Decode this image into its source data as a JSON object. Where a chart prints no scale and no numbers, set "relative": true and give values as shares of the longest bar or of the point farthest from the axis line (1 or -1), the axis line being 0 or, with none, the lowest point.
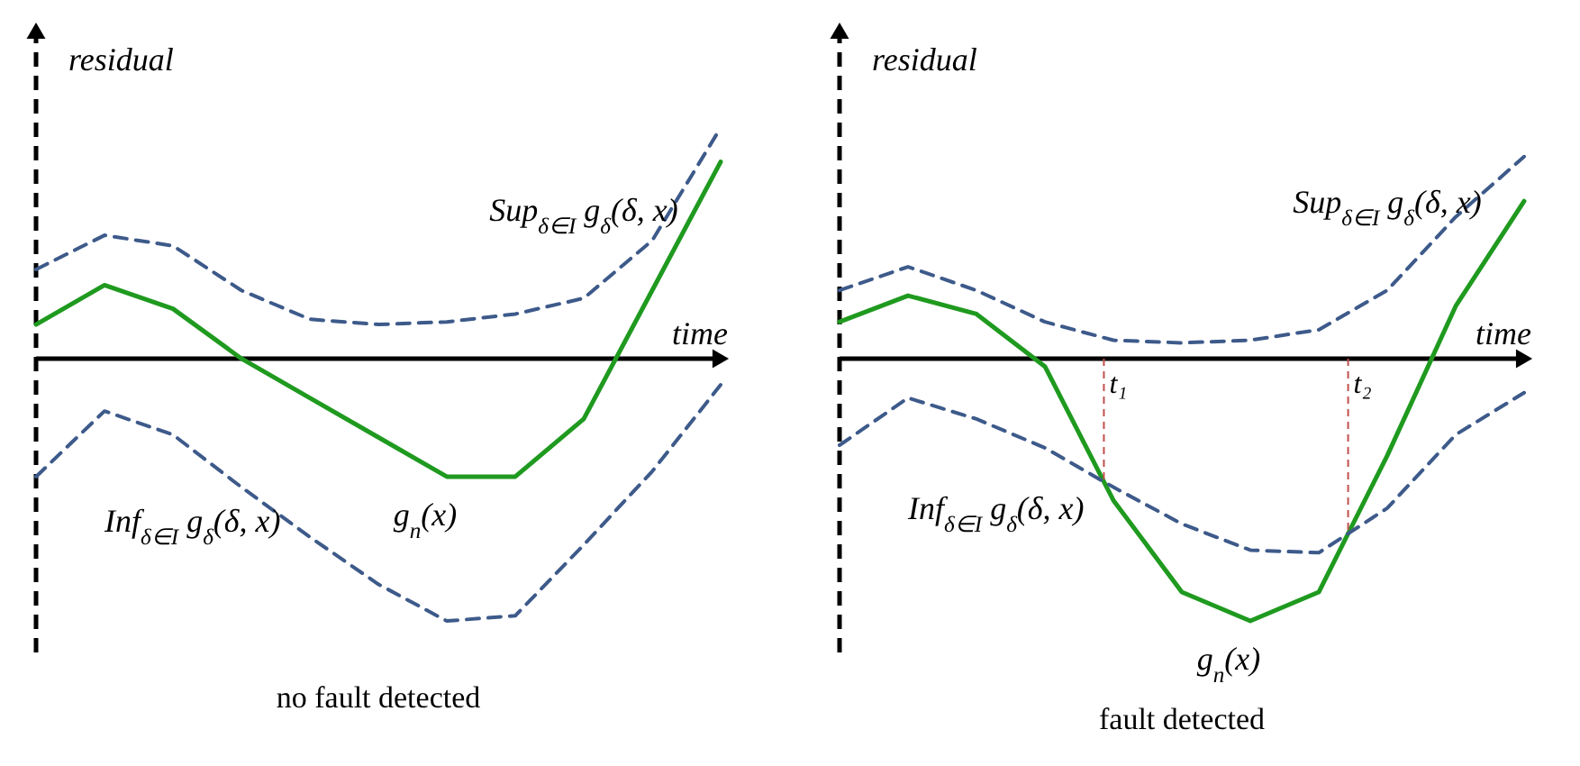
{
  "chart_data": [
    {
      "type": "line",
      "title": "no fault detected",
      "xlabel": "time",
      "ylabel": "residual",
      "relative": true,
      "categories": [
        null,
        null,
        null,
        null,
        null,
        null,
        null,
        null,
        null,
        null,
        null
      ],
      "series": [
        {
          "name": "Sup$_{δ∈I}$ g$_{δ}$(δ, x)",
          "color": "#3d5a8a",
          "line_style": "dashed",
          "values": [
            0.34,
            0.47,
            0.43,
            0.26,
            0.15,
            0.13,
            0.14,
            0.17,
            0.23,
            0.45,
            0.88
          ]
        },
        {
          "name": "g$_{n}$(x)",
          "color": "#1f9a1f",
          "line_style": "solid",
          "values": [
            0.13,
            0.28,
            0.19,
            0,
            -0.15,
            -0.3,
            -0.45,
            -0.45,
            -0.23,
            0.26,
            0.75
          ]
        },
        {
          "name": "Inf$_{δ∈I}$ g$_{δ}$(δ, x)",
          "color": "#3d5a8a",
          "line_style": "dashed",
          "values": [
            -0.45,
            -0.2,
            -0.29,
            -0.49,
            -0.68,
            -0.86,
            -1,
            -0.98,
            -0.71,
            -0.43,
            -0.1
          ]
        }
      ]
    },
    {
      "type": "line",
      "title": "fault detected",
      "xlabel": "time",
      "ylabel": "residual",
      "relative": true,
      "categories": [
        null,
        null,
        null,
        null,
        null,
        null,
        null,
        null,
        null,
        null,
        null
      ],
      "series": [
        {
          "name": "Sup$_{δ∈I}$ g$_{δ}$(δ, x)",
          "color": "#3d5a8a",
          "line_style": "dashed",
          "values": [
            0.26,
            0.35,
            0.26,
            0.14,
            0.07,
            0.06,
            0.07,
            0.11,
            0.26,
            0.54,
            0.77
          ]
        },
        {
          "name": "g$_{n}$(x)",
          "color": "#1f9a1f",
          "line_style": "solid",
          "values": [
            0.14,
            0.24,
            0.17,
            -0.03,
            -0.54,
            -0.89,
            -1,
            -0.89,
            -0.37,
            0.2,
            0.6
          ]
        },
        {
          "name": "Inf$_{δ∈I}$ g$_{δ}$(δ, x)",
          "color": "#3d5a8a",
          "line_style": "dashed",
          "values": [
            -0.33,
            -0.15,
            -0.23,
            -0.34,
            -0.49,
            -0.63,
            -0.73,
            -0.74,
            -0.57,
            -0.29,
            -0.13
          ]
        }
      ],
      "annotations": [
        "t₁",
        "t₂"
      ]
    }
  ]
}
